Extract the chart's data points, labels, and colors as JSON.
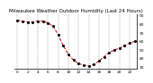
{
  "title": "Milwaukee Weather Outdoor Humidity (Last 24 Hours)",
  "line_color": "#cc0000",
  "marker_color": "#000000",
  "background_color": "#ffffff",
  "grid_color": "#999999",
  "x_values": [
    0,
    1,
    2,
    3,
    4,
    5,
    6,
    7,
    8,
    9,
    10,
    11,
    12,
    13,
    14,
    15,
    16,
    17,
    18,
    19,
    20,
    21,
    22,
    23
  ],
  "y_values": [
    85,
    84,
    83,
    83,
    84,
    84,
    82,
    78,
    68,
    55,
    45,
    38,
    34,
    32,
    31,
    33,
    37,
    42,
    47,
    50,
    52,
    55,
    58,
    60
  ],
  "ylim": [
    28,
    92
  ],
  "xlim": [
    -0.5,
    23.5
  ],
  "yticks": [
    30,
    40,
    50,
    60,
    70,
    80,
    90
  ],
  "ytick_labels": [
    "30",
    "40",
    "50",
    "60",
    "70",
    "80",
    "90"
  ],
  "xticks": [
    0,
    2,
    4,
    6,
    8,
    10,
    12,
    14,
    16,
    18,
    20,
    22
  ],
  "xtick_labels": [
    "0",
    "2",
    "4",
    "6",
    "8",
    "10",
    "12",
    "14",
    "16",
    "18",
    "20",
    "22"
  ],
  "title_fontsize": 4.0,
  "tick_fontsize": 3.2,
  "line_width": 0.7,
  "marker_size": 1.2,
  "grid_linewidth": 0.35,
  "spine_linewidth": 0.5
}
